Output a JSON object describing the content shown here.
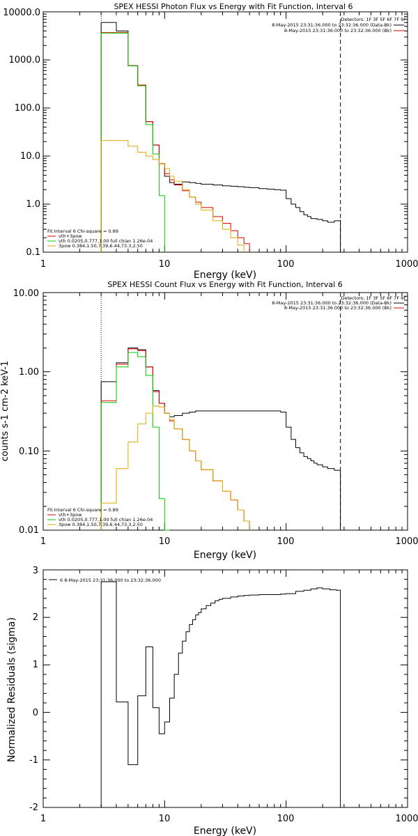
{
  "chart_data": [
    {
      "type": "line",
      "title": "SPEX HESSI Photon Flux vs Energy with Fit Function, Interval 6",
      "xlabel": "Energy (keV)",
      "ylabel": "",
      "xscale": "log",
      "yscale": "log",
      "xlim": [
        1,
        1000
      ],
      "ylim": [
        0.1,
        10000
      ],
      "x_ticks": [
        "1",
        "10",
        "100",
        "1000"
      ],
      "y_ticks": [
        "0.1",
        "1.0",
        "10.0",
        "100.0",
        "1000.0",
        "10000.0"
      ],
      "vlines": [
        3,
        280
      ],
      "info_lines": [
        "Detectors: 1F 3F 5F 6F 7F 9F",
        "8-May-2015 23:31:36.000 to 23:32:36.000 (Data-Bk)",
        "8-May-2015 23:31:36.000 to 23:32:36.000 (Bk)"
      ],
      "legend_lines": [
        "Fit Interval 6   Chi-square = 0.89",
        "vth+3pow",
        "vth 0.0205,0.777,1.00  full chian 1.26e-04",
        "3pow 0.384,1.50,7.39,6.44,73.3,2.50"
      ],
      "legend_colors": [
        "#000000",
        "#dd0000",
        "#00cc00",
        "#ddaa00"
      ],
      "series": [
        {
          "color": "#000000",
          "x": [
            3,
            4,
            5,
            6,
            7,
            8,
            9,
            10,
            11,
            12,
            14,
            16,
            18,
            20,
            25,
            30,
            35,
            40,
            45,
            50,
            60,
            70,
            80,
            90,
            100,
            110,
            120,
            130,
            140,
            150,
            160,
            170,
            180,
            200,
            220,
            250,
            280
          ],
          "values": [
            6000,
            4000,
            760,
            300,
            52,
            17,
            7,
            3.8,
            2.8,
            2.6,
            2.9,
            2.8,
            2.7,
            2.6,
            2.5,
            2.4,
            2.35,
            2.3,
            2.25,
            2.2,
            2.1,
            2.05,
            2,
            1.95,
            1.3,
            1.0,
            0.85,
            0.7,
            0.6,
            0.55,
            0.5,
            0.5,
            0.48,
            0.45,
            0.42,
            0.45,
            0.47
          ]
        },
        {
          "color": "#dd0000",
          "x": [
            3,
            4,
            5,
            6,
            7,
            8,
            9,
            10,
            11,
            12,
            14,
            16,
            18,
            20,
            25,
            30,
            35,
            40,
            45,
            50
          ],
          "values": [
            3700,
            3700,
            760,
            300,
            52,
            17,
            7,
            4.3,
            3.2,
            2.5,
            1.9,
            1.4,
            1.1,
            0.85,
            0.55,
            0.4,
            0.28,
            0.2,
            0.15,
            0.11
          ]
        },
        {
          "color": "#00cc00",
          "x": [
            3,
            4,
            5,
            6,
            7,
            8,
            9,
            10
          ],
          "values": [
            3600,
            3600,
            750,
            290,
            45,
            11,
            1.5,
            0.18
          ]
        },
        {
          "color": "#ddaa00",
          "x": [
            3,
            4,
            5,
            6,
            7,
            8,
            9,
            10,
            11,
            12,
            14,
            16,
            18,
            20,
            25,
            30,
            35,
            40,
            45
          ],
          "values": [
            21,
            21,
            16,
            12,
            10,
            8.5,
            7,
            5.5,
            3.8,
            3.0,
            2.0,
            1.4,
            1.0,
            0.75,
            0.45,
            0.3,
            0.2,
            0.14,
            0.11
          ]
        }
      ]
    },
    {
      "type": "line",
      "title": "SPEX HESSI Count Flux vs Energy with Fit Function, Interval 6",
      "xlabel": "Energy (keV)",
      "ylabel": "counts s-1 cm-2 keV-1",
      "xscale": "log",
      "yscale": "log",
      "xlim": [
        1,
        1000
      ],
      "ylim": [
        0.01,
        10
      ],
      "x_ticks": [
        "1",
        "10",
        "100",
        "1000"
      ],
      "y_ticks": [
        "0.01",
        "0.10",
        "1.00",
        "10.00"
      ],
      "vlines": [
        3,
        280
      ],
      "info_lines": [
        "Detectors: 1F 3F 5F 6F 7F 9F",
        "8-May-2015 23:31:36.000 to 23:32:36.000 (Data-Bk)",
        "8-May-2015 23:31:36.000 to 23:32:36.000 (Bk)"
      ],
      "legend_lines": [
        "Fit Interval 6   Chi-square = 0.89",
        "vth+3pow",
        "vth 0.0205,0.777,1.00  full chian 1.26e-04",
        "3pow 0.384,1.50,7.39,6.44,73.3,2.50"
      ],
      "legend_colors": [
        "#000000",
        "#dd0000",
        "#00cc00",
        "#ddaa00"
      ],
      "series": [
        {
          "color": "#000000",
          "x": [
            3,
            4,
            5,
            6,
            7,
            8,
            9,
            10,
            11,
            12,
            14,
            16,
            18,
            20,
            25,
            30,
            35,
            40,
            45,
            50,
            60,
            70,
            80,
            90,
            100,
            110,
            120,
            130,
            140,
            150,
            160,
            170,
            180,
            200,
            220,
            250,
            280
          ],
          "values": [
            0.75,
            1.3,
            2.0,
            1.9,
            1.15,
            0.58,
            0.4,
            0.3,
            0.27,
            0.28,
            0.3,
            0.31,
            0.32,
            0.32,
            0.32,
            0.32,
            0.32,
            0.32,
            0.32,
            0.32,
            0.32,
            0.32,
            0.32,
            0.31,
            0.2,
            0.14,
            0.11,
            0.095,
            0.085,
            0.08,
            0.075,
            0.07,
            0.067,
            0.063,
            0.06,
            0.057,
            0.055
          ]
        },
        {
          "color": "#dd0000",
          "x": [
            3,
            4,
            5,
            6,
            7,
            8,
            9,
            10,
            11,
            12,
            14,
            16,
            18,
            20,
            25,
            30,
            35,
            40,
            45,
            50
          ],
          "values": [
            0.43,
            1.25,
            1.95,
            1.85,
            1.15,
            0.56,
            0.4,
            0.3,
            0.24,
            0.19,
            0.14,
            0.1,
            0.075,
            0.058,
            0.042,
            0.031,
            0.024,
            0.018,
            0.013,
            0.01
          ]
        },
        {
          "color": "#00cc00",
          "x": [
            3,
            4,
            5,
            6,
            7,
            8,
            9,
            10,
            11
          ],
          "values": [
            0.41,
            1.15,
            1.75,
            1.55,
            0.9,
            0.2,
            0.025,
            0.01,
            0.005
          ]
        },
        {
          "color": "#ddaa00",
          "x": [
            3,
            4,
            5,
            6,
            7,
            8,
            9,
            10,
            11,
            12,
            14,
            16,
            18,
            20,
            25,
            30,
            35,
            40,
            45,
            50
          ],
          "values": [
            0.022,
            0.06,
            0.13,
            0.22,
            0.3,
            0.37,
            0.36,
            0.3,
            0.25,
            0.19,
            0.14,
            0.1,
            0.075,
            0.058,
            0.042,
            0.031,
            0.024,
            0.018,
            0.013,
            0.01
          ]
        }
      ]
    },
    {
      "type": "line",
      "title": "",
      "xlabel": "Energy (keV)",
      "ylabel": "Normalized Residuals (sigma)",
      "xscale": "log",
      "yscale": "linear",
      "xlim": [
        1,
        1000
      ],
      "ylim": [
        -2,
        3
      ],
      "x_ticks": [
        "1",
        "10",
        "100",
        "1000"
      ],
      "y_ticks": [
        "-2",
        "-1",
        "0",
        "1",
        "2",
        "3"
      ],
      "vlines": [],
      "legend_lines": [
        "6  8-May-2015 23:31:36.000 to 23:32:36.000"
      ],
      "legend_colors": [
        "#000000"
      ],
      "series": [
        {
          "color": "#000000",
          "x": [
            3,
            4,
            5,
            6,
            7,
            8,
            9,
            10,
            11,
            12,
            13,
            14,
            15,
            16,
            17,
            18,
            19,
            20,
            22,
            24,
            26,
            28,
            30,
            35,
            40,
            45,
            50,
            60,
            70,
            80,
            90,
            100,
            120,
            140,
            160,
            180,
            200,
            230,
            260,
            280
          ],
          "values": [
            2.75,
            0.22,
            -1.1,
            0.35,
            1.38,
            0.1,
            -0.45,
            -0.2,
            0.3,
            0.8,
            1.25,
            1.5,
            1.7,
            1.85,
            1.95,
            2.05,
            2.1,
            2.18,
            2.25,
            2.3,
            2.35,
            2.38,
            2.4,
            2.43,
            2.45,
            2.46,
            2.47,
            2.48,
            2.48,
            2.48,
            2.49,
            2.5,
            2.55,
            2.57,
            2.6,
            2.62,
            2.6,
            2.58,
            2.57,
            2.57
          ]
        }
      ]
    }
  ]
}
